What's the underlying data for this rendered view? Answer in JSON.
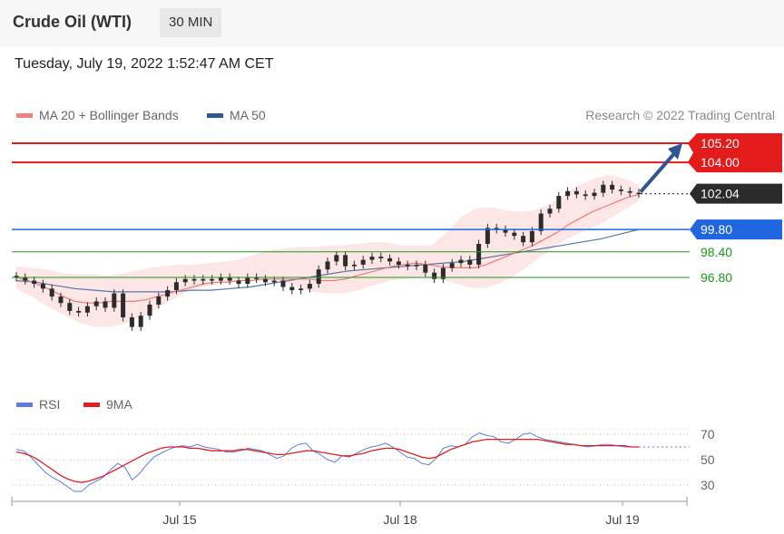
{
  "header": {
    "title": "Crude Oil (WTI)",
    "timeframe": "30 MIN"
  },
  "timestamp": "Tuesday, July 19, 2022 1:52:47 AM CET",
  "legend": {
    "bollinger": {
      "label": "MA 20 + Bollinger Bands",
      "color": "#f08080"
    },
    "ma50": {
      "label": "MA 50",
      "color": "#2f5597"
    },
    "credit": "Research © 2022 Trading Central"
  },
  "rsi_legend": {
    "rsi": {
      "label": "RSI",
      "color": "#5b7fe0"
    },
    "ma9": {
      "label": "9MA",
      "color": "#e02020"
    }
  },
  "colors": {
    "resistance": "#e31b1b",
    "pivot": "#1f66e0",
    "support": "#1a9a1a",
    "current": "#2b2b2b",
    "candle": "#2c2c2c",
    "band": "#fde6e6"
  },
  "chart_data": [
    {
      "type": "line",
      "series_kind": "candlestick",
      "x_tick_labels": [
        "Jul 15",
        "Jul 18",
        "Jul 19"
      ],
      "y_visible_range": [
        93.2,
        106.3
      ],
      "levels": [
        {
          "label": "105.20",
          "value": 105.2,
          "kind": "resistance"
        },
        {
          "label": "104.00",
          "value": 104.0,
          "kind": "resistance"
        },
        {
          "label": "102.04",
          "value": 102.04,
          "kind": "current"
        },
        {
          "label": "99.80",
          "value": 99.8,
          "kind": "pivot"
        },
        {
          "label": "98.40",
          "value": 98.4,
          "kind": "support"
        },
        {
          "label": "96.80",
          "value": 96.8,
          "kind": "support"
        }
      ],
      "close_prices": [
        96.8,
        96.6,
        96.4,
        96.1,
        95.6,
        95.2,
        94.7,
        94.6,
        95.0,
        95.3,
        94.9,
        95.8,
        94.3,
        93.7,
        94.4,
        95.1,
        95.6,
        96.0,
        96.5,
        96.7,
        96.6,
        96.7,
        96.6,
        96.8,
        96.6,
        96.4,
        96.8,
        96.7,
        96.5,
        96.6,
        96.2,
        96.0,
        96.1,
        96.4,
        97.3,
        97.8,
        98.2,
        97.5,
        97.6,
        97.9,
        98.1,
        98.0,
        97.8,
        97.6,
        97.5,
        97.6,
        97.1,
        96.7,
        97.4,
        97.7,
        97.9,
        97.6,
        98.9,
        99.9,
        99.8,
        99.6,
        99.4,
        99.0,
        99.7,
        100.8,
        101.1,
        101.9,
        102.2,
        102.0,
        101.9,
        102.1,
        102.6,
        102.3,
        102.2,
        102.1,
        102.04
      ],
      "ma20": [
        96.8,
        96.6,
        96.3,
        96.0,
        95.6,
        95.3,
        95.2,
        95.2,
        95.3,
        95.3,
        95.3,
        95.4,
        95.6,
        95.8,
        96.0,
        96.2,
        96.4,
        96.5,
        96.5,
        96.6,
        96.6,
        96.7,
        96.7,
        96.7,
        96.7,
        96.7,
        96.6,
        96.6,
        96.7,
        96.9,
        97.1,
        97.3,
        97.5,
        97.6,
        97.7,
        97.6,
        97.5,
        97.4,
        97.4,
        97.4,
        97.6,
        97.9,
        98.2,
        98.5,
        98.8,
        99.2,
        99.6,
        100.1,
        100.5,
        100.9,
        101.2,
        101.5,
        101.8,
        102.0
      ],
      "ma50": [
        96.6,
        96.5,
        96.3,
        96.1,
        96.0,
        95.9,
        95.9,
        95.9,
        95.9,
        96.0,
        96.0,
        96.1,
        96.2,
        96.4,
        96.6,
        96.8,
        97.0,
        97.2,
        97.3,
        97.4,
        97.5,
        97.6,
        97.7,
        97.8,
        98.0,
        98.2,
        98.4,
        98.6,
        98.8,
        99.0,
        99.2,
        99.5,
        99.8
      ],
      "upper_band": [
        97.5,
        97.4,
        97.3,
        97.1,
        97.0,
        97.0,
        96.9,
        97.0,
        97.2,
        97.4,
        97.5,
        97.6,
        97.6,
        97.7,
        97.8,
        97.9,
        98.2,
        98.5,
        98.6,
        98.7,
        98.7,
        98.8,
        98.8,
        98.9,
        99.0,
        99.0,
        98.8,
        98.8,
        98.8,
        99.6,
        100.6,
        101.1,
        101.2,
        101.0,
        100.9,
        101.0,
        101.4,
        102.0,
        102.6,
        103.0,
        103.2,
        103.0,
        102.6
      ],
      "lower_band": [
        96.1,
        95.6,
        95.0,
        94.5,
        94.0,
        93.7,
        93.7,
        93.9,
        94.3,
        94.8,
        95.4,
        95.9,
        96.2,
        96.4,
        96.6,
        96.6,
        96.6,
        96.5,
        96.2,
        95.9,
        95.8,
        95.8,
        96.0,
        96.3,
        96.6,
        96.7,
        96.8,
        96.7,
        96.5,
        96.2,
        96.1,
        96.4,
        96.9,
        97.6,
        98.3,
        99.0,
        99.5,
        99.9,
        100.4,
        101.0,
        101.6
      ],
      "arrow_target": 105.2
    },
    {
      "type": "line",
      "title": "RSI",
      "y_ticks": [
        70,
        50,
        30
      ],
      "series": [
        {
          "name": "RSI",
          "values": [
            58,
            57,
            52,
            46,
            40,
            36,
            33,
            29,
            25,
            25,
            30,
            33,
            36,
            42,
            47,
            44,
            34,
            39,
            46,
            52,
            55,
            58,
            60,
            61,
            60,
            62,
            60,
            59,
            58,
            56,
            56,
            57,
            59,
            58,
            57,
            54,
            51,
            53,
            59,
            62,
            63,
            57,
            54,
            50,
            48,
            53,
            52,
            55,
            58,
            60,
            61,
            63,
            60,
            56,
            52,
            51,
            47,
            46,
            51,
            59,
            61,
            60,
            62,
            68,
            71,
            69,
            68,
            64,
            63,
            66,
            70,
            71,
            68,
            66,
            65,
            64,
            63,
            62,
            61,
            60,
            61,
            62,
            62,
            61,
            60,
            60,
            60
          ]
        },
        {
          "name": "9MA",
          "values": [
            56,
            55,
            53,
            50,
            46,
            42,
            38,
            35,
            33,
            32,
            33,
            35,
            37,
            40,
            43,
            46,
            49,
            52,
            55,
            57,
            59,
            60,
            60,
            60,
            59,
            59,
            58,
            57,
            57,
            57,
            57,
            58,
            58,
            57,
            56,
            55,
            54,
            54,
            55,
            56,
            57,
            57,
            56,
            55,
            54,
            53,
            53,
            54,
            55,
            57,
            58,
            59,
            59,
            58,
            56,
            54,
            52,
            51,
            52,
            55,
            58,
            60,
            62,
            64,
            65,
            66,
            66,
            66,
            66,
            66,
            66,
            66,
            66,
            65,
            64,
            63,
            62,
            62,
            61,
            61,
            61,
            61,
            61,
            61,
            61,
            60,
            60
          ]
        }
      ]
    }
  ]
}
